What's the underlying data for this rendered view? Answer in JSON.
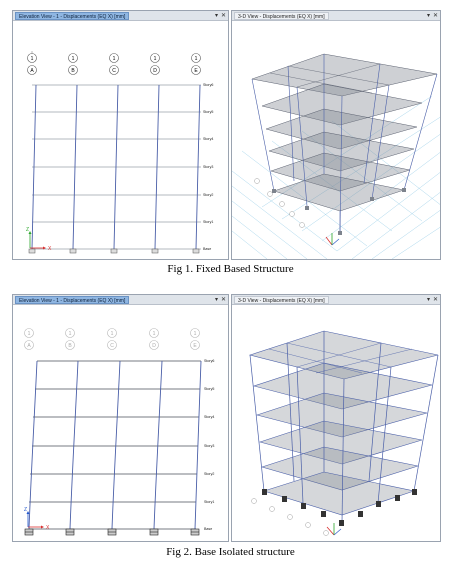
{
  "figures": [
    {
      "left_panel": {
        "tab_title": "Elevation View - 1 - Displacements (EQ X) [mm]"
      },
      "right_panel": {
        "tab_title": "3-D View - Displacements (EQ X) [mm]"
      },
      "grid_bubbles": {
        "top": [
          "1",
          "1",
          "1",
          "1",
          "1"
        ],
        "bottom": [
          "A",
          "B",
          "C",
          "D",
          "E"
        ]
      },
      "story_labels": [
        "Story6",
        "Story5",
        "Story4",
        "Story3",
        "Story2",
        "Story1",
        "Base"
      ],
      "axis_labels": {
        "x": "X",
        "z": "Z"
      },
      "caption": "Fig 1. Fixed Based Structure"
    },
    {
      "left_panel": {
        "tab_title": "Elevation View - 1 - Displacements (EQ X) [mm]"
      },
      "right_panel": {
        "tab_title": "3-D View - Displacements (EQ X) [mm]"
      },
      "grid_bubbles": {
        "top": [
          "1",
          "1",
          "1",
          "1",
          "1"
        ],
        "bottom": [
          "A",
          "B",
          "C",
          "D",
          "E"
        ]
      },
      "story_labels": [
        "Story6",
        "Story5",
        "Story4",
        "Story3",
        "Story2",
        "Story1",
        "Base"
      ],
      "axis_labels": {
        "x": "X",
        "z": "Z"
      },
      "caption": "Fig 2. Base Isolated structure"
    }
  ],
  "icons": {
    "pin": "pin-icon",
    "close": "close-icon"
  },
  "colors": {
    "frame_line": "#4a5fa8",
    "story_line": "#6a6f7a",
    "slab_fill": "#7d838d",
    "tab_active": "#8fb6e2",
    "floor_grid": "#a9d6ec",
    "axis_x": "#d93030",
    "axis_z": "#2aa52a"
  }
}
